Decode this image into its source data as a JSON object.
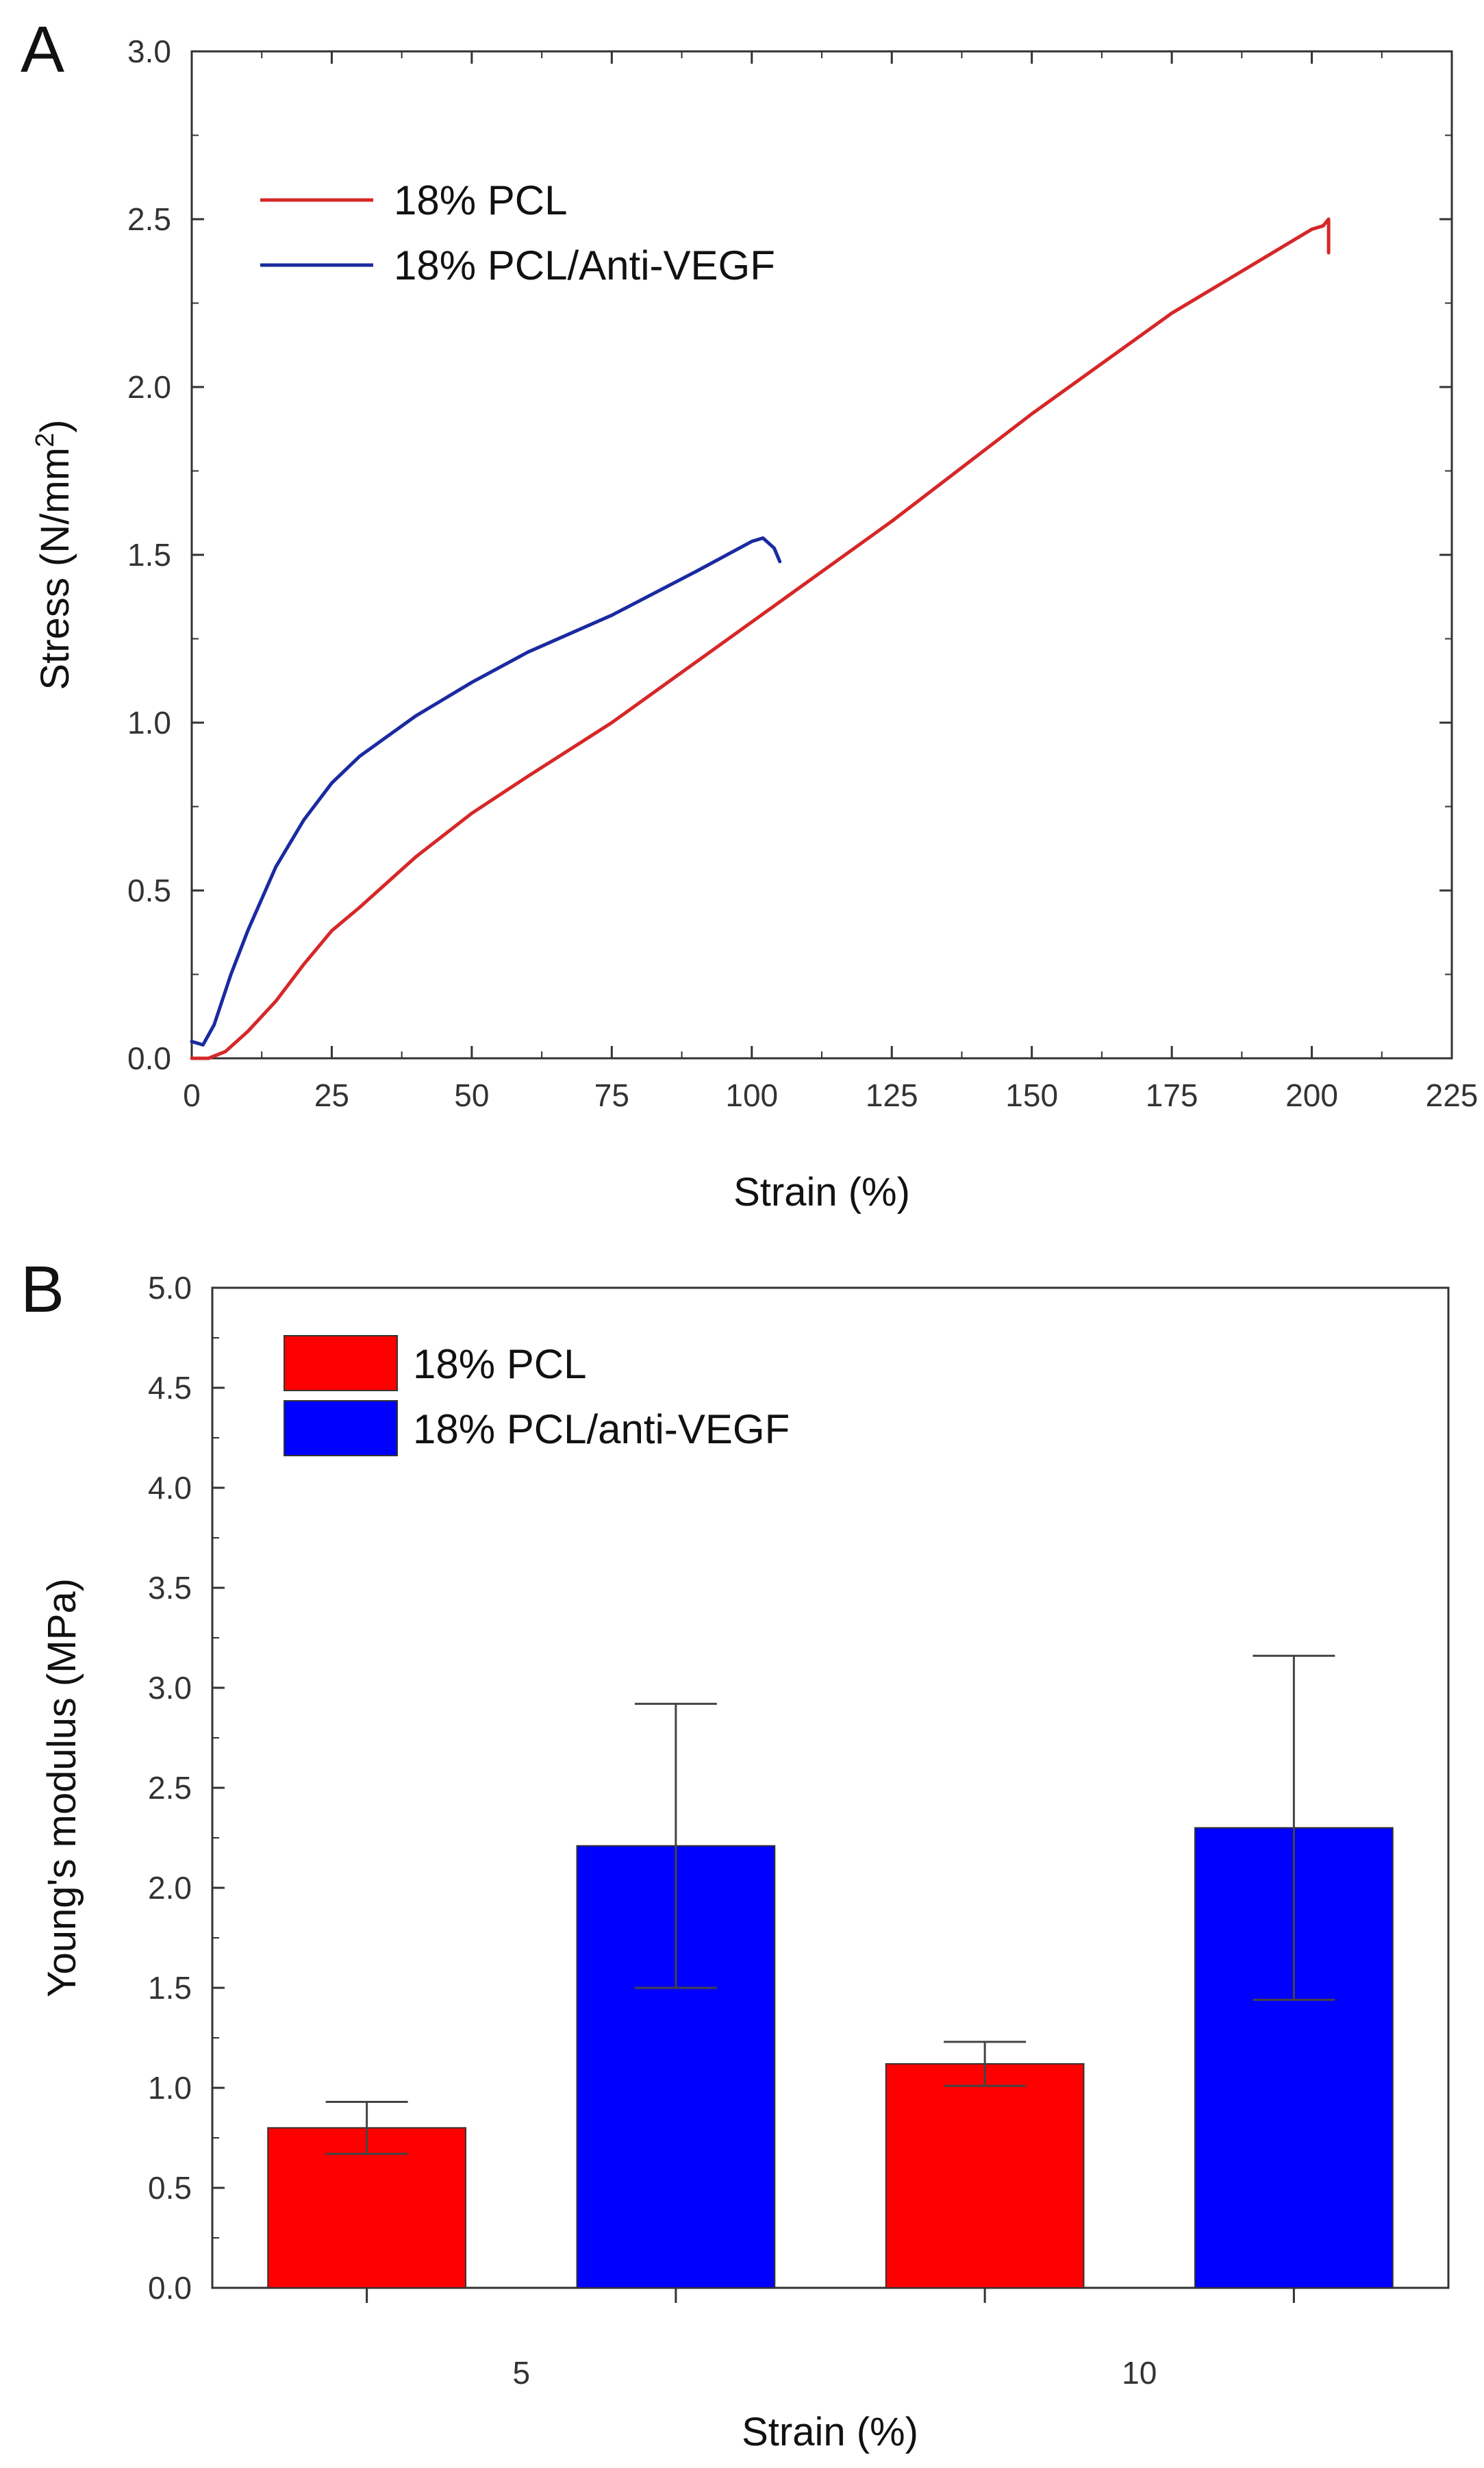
{
  "chart_data": [
    {
      "panel": "A",
      "type": "line",
      "xlabel": "Strain (%)",
      "ylabel": "Stress (N/mm",
      "ylabel_sup": "2",
      "ylabel_suffix": ")",
      "xlim": [
        0,
        225
      ],
      "ylim": [
        0,
        3.0
      ],
      "xticks": [
        0,
        25,
        50,
        75,
        100,
        125,
        150,
        175,
        200,
        225
      ],
      "yticks": [
        0.0,
        0.5,
        1.0,
        1.5,
        2.0,
        2.5,
        3.0
      ],
      "xtick_labels": [
        "0",
        "25",
        "50",
        "75",
        "100",
        "125",
        "150",
        "175",
        "200",
        "225"
      ],
      "ytick_labels": [
        "0.0",
        "0.5",
        "1.0",
        "1.5",
        "2.0",
        "2.5",
        "3.0"
      ],
      "legend_position": "top-left",
      "series": [
        {
          "name": "18% PCL",
          "color": "#d62728",
          "x": [
            0,
            3,
            6,
            10,
            15,
            20,
            25,
            30,
            40,
            50,
            60,
            75,
            90,
            100,
            110,
            125,
            150,
            175,
            190,
            200,
            202,
            203,
            203
          ],
          "y": [
            0.0,
            0.0,
            0.02,
            0.08,
            0.17,
            0.28,
            0.38,
            0.45,
            0.6,
            0.73,
            0.84,
            1.0,
            1.18,
            1.3,
            1.42,
            1.6,
            1.92,
            2.22,
            2.37,
            2.47,
            2.48,
            2.5,
            2.4
          ]
        },
        {
          "name": "18% PCL/Anti-VEGF",
          "color": "#1a2aa0",
          "x": [
            0,
            2,
            4,
            7,
            10,
            15,
            20,
            25,
            30,
            40,
            50,
            60,
            75,
            90,
            100,
            102,
            104,
            105
          ],
          "y": [
            0.05,
            0.04,
            0.1,
            0.25,
            0.38,
            0.57,
            0.71,
            0.82,
            0.9,
            1.02,
            1.12,
            1.21,
            1.32,
            1.45,
            1.54,
            1.55,
            1.52,
            1.48
          ]
        }
      ]
    },
    {
      "panel": "B",
      "type": "bar",
      "xlabel": "Strain (%)",
      "ylabel": "Young's modulus (MPa)",
      "ylim": [
        0,
        5.0
      ],
      "yticks": [
        0.0,
        0.5,
        1.0,
        1.5,
        2.0,
        2.5,
        3.0,
        3.5,
        4.0,
        4.5,
        5.0
      ],
      "ytick_labels": [
        "0.0",
        "0.5",
        "1.0",
        "1.5",
        "2.0",
        "2.5",
        "3.0",
        "3.5",
        "4.0",
        "4.5",
        "5.0"
      ],
      "categories": [
        "5",
        "10"
      ],
      "legend_position": "top-left",
      "series": [
        {
          "name": "18% PCL",
          "color": "#ff0000",
          "values": [
            0.8,
            1.12
          ],
          "errors": [
            0.13,
            0.11
          ]
        },
        {
          "name": "18% PCL/anti-VEGF",
          "color": "#0000ff",
          "values": [
            2.21,
            2.3
          ],
          "errors": [
            0.71,
            0.86
          ]
        }
      ]
    }
  ]
}
